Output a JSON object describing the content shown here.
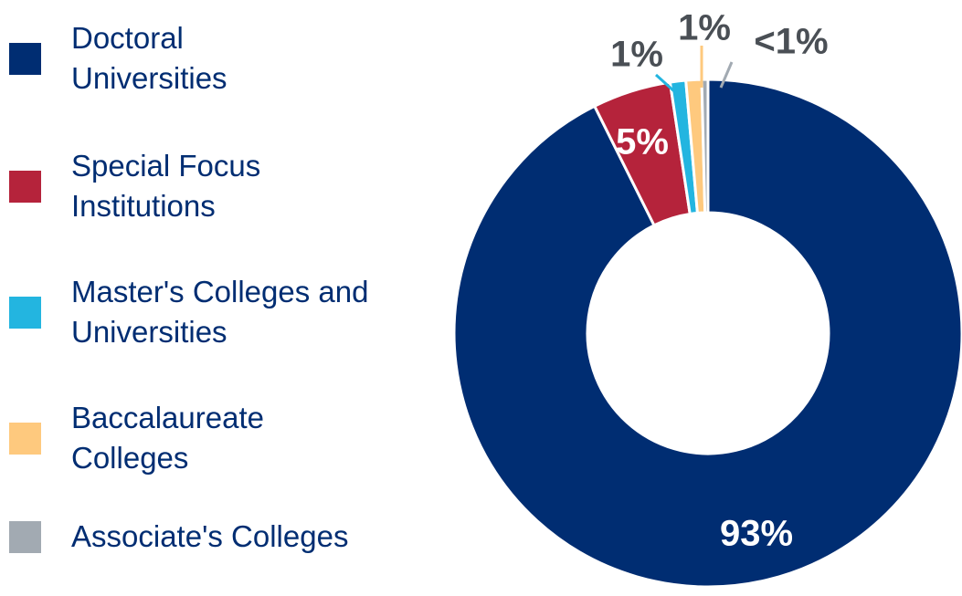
{
  "chart_data": {
    "type": "donut",
    "categories": [
      "Doctoral Universities",
      "Special Focus Institutions",
      "Master's Colleges and Universities",
      "Baccalaureate Colleges",
      "Associate's Colleges"
    ],
    "values": [
      93,
      5,
      1,
      1,
      0.4
    ],
    "value_labels": [
      "93%",
      "5%",
      "1%",
      "1%",
      "<1%"
    ],
    "colors": [
      "#002d72",
      "#b5233b",
      "#23b5e0",
      "#fec97e",
      "#a2aab2"
    ],
    "legend": "left"
  }
}
